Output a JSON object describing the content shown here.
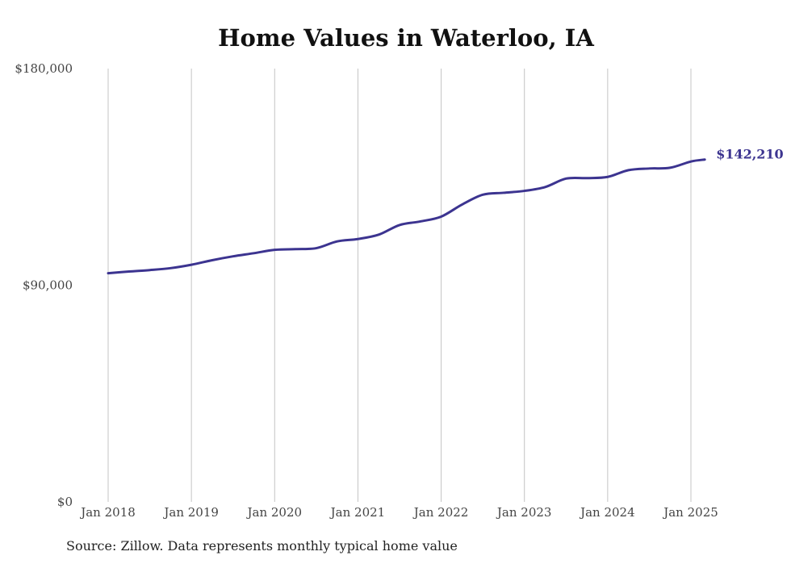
{
  "chart_data": {
    "type": "line",
    "title": "Home Values in Waterloo, IA",
    "source": "Source: Zillow. Data represents monthly typical home value",
    "xlabel": "",
    "ylabel": "",
    "ylim": [
      0,
      180000
    ],
    "y_ticks": [
      {
        "value": 0,
        "label": "$0"
      },
      {
        "value": 90000,
        "label": "$90,000"
      },
      {
        "value": 180000,
        "label": "$180,000"
      }
    ],
    "x_ticks": [
      {
        "value": "2018-01",
        "label": "Jan 2018"
      },
      {
        "value": "2019-01",
        "label": "Jan 2019"
      },
      {
        "value": "2020-01",
        "label": "Jan 2020"
      },
      {
        "value": "2021-01",
        "label": "Jan 2021"
      },
      {
        "value": "2022-01",
        "label": "Jan 2022"
      },
      {
        "value": "2023-01",
        "label": "Jan 2023"
      },
      {
        "value": "2024-01",
        "label": "Jan 2024"
      },
      {
        "value": "2025-01",
        "label": "Jan 2025"
      }
    ],
    "grid": "vertical",
    "line_color": "#3c3490",
    "end_label": "$142,210",
    "series": [
      {
        "color": "#3c3490",
        "points": [
          {
            "x": "2018-01",
            "y": 95000
          },
          {
            "x": "2018-04",
            "y": 95700
          },
          {
            "x": "2018-07",
            "y": 96300
          },
          {
            "x": "2018-10",
            "y": 97100
          },
          {
            "x": "2019-01",
            "y": 98500
          },
          {
            "x": "2019-04",
            "y": 100400
          },
          {
            "x": "2019-07",
            "y": 102000
          },
          {
            "x": "2019-10",
            "y": 103300
          },
          {
            "x": "2020-01",
            "y": 104700
          },
          {
            "x": "2020-04",
            "y": 105000
          },
          {
            "x": "2020-07",
            "y": 105400
          },
          {
            "x": "2020-10",
            "y": 108200
          },
          {
            "x": "2021-01",
            "y": 109200
          },
          {
            "x": "2021-04",
            "y": 111000
          },
          {
            "x": "2021-07",
            "y": 115000
          },
          {
            "x": "2021-10",
            "y": 116500
          },
          {
            "x": "2022-01",
            "y": 118500
          },
          {
            "x": "2022-04",
            "y": 123500
          },
          {
            "x": "2022-07",
            "y": 127600
          },
          {
            "x": "2022-10",
            "y": 128400
          },
          {
            "x": "2023-01",
            "y": 129200
          },
          {
            "x": "2023-04",
            "y": 130800
          },
          {
            "x": "2023-07",
            "y": 134300
          },
          {
            "x": "2023-10",
            "y": 134500
          },
          {
            "x": "2024-01",
            "y": 135000
          },
          {
            "x": "2024-04",
            "y": 137800
          },
          {
            "x": "2024-07",
            "y": 138500
          },
          {
            "x": "2024-10",
            "y": 138800
          },
          {
            "x": "2025-01",
            "y": 141400
          },
          {
            "x": "2025-03",
            "y": 142210
          }
        ]
      }
    ]
  }
}
